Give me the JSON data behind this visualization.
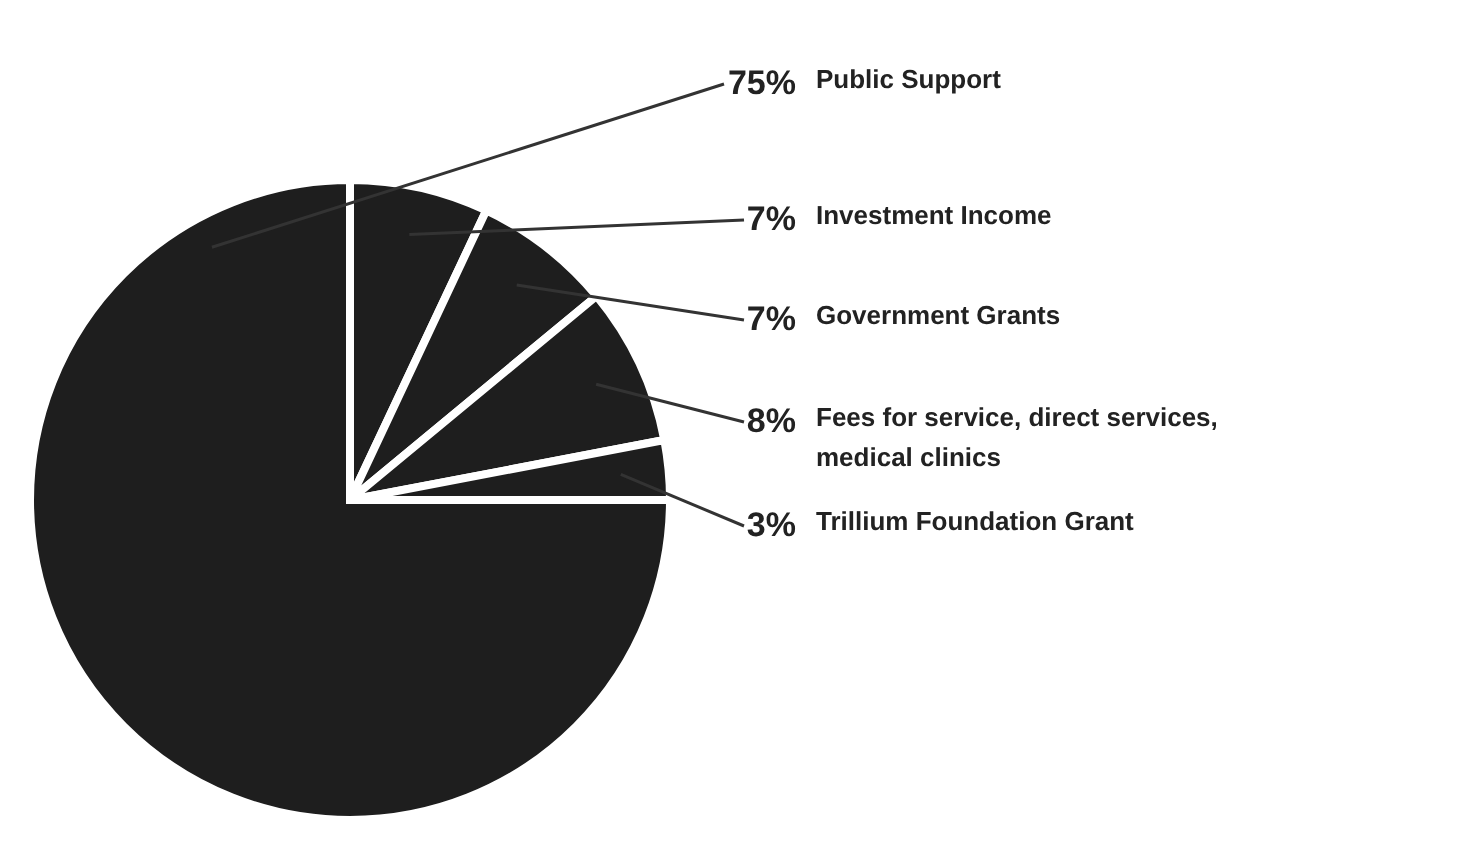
{
  "chart_data": {
    "type": "pie",
    "categories": [
      "Investment Income",
      "Government Grants",
      "Fees for service, direct services, medical clinics",
      "Trillium Foundation Grant",
      "Public Support"
    ],
    "values": [
      7,
      7,
      8,
      3,
      75
    ],
    "value_labels": [
      "7%",
      "7%",
      "8%",
      "3%",
      "75%"
    ],
    "colors": [
      "#1e1e1e",
      "#1e1e1e",
      "#1e1e1e",
      "#1e1e1e",
      "#1e1e1e"
    ]
  }
}
